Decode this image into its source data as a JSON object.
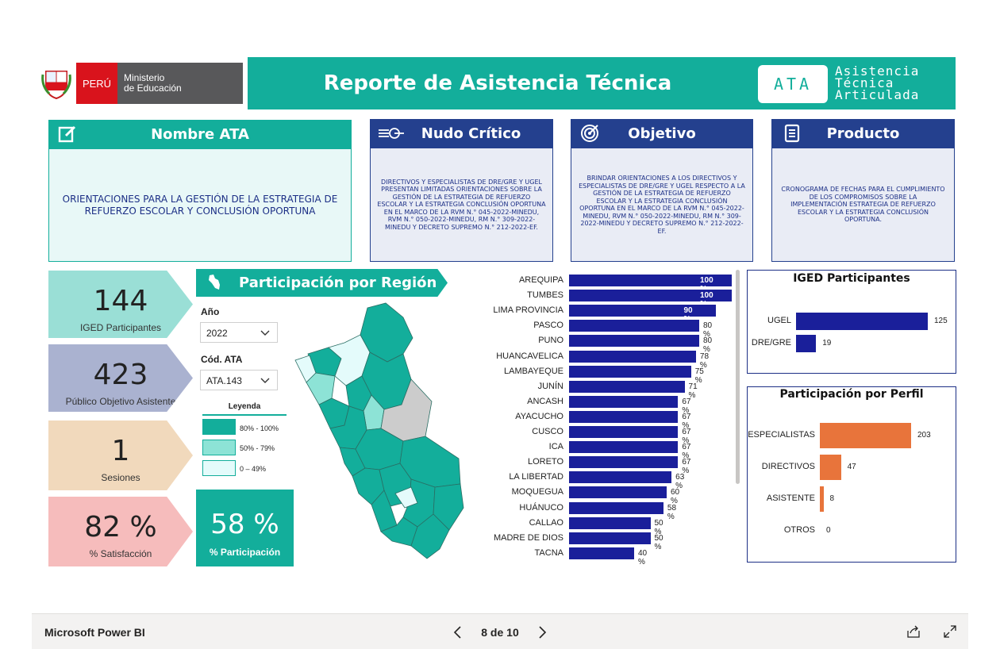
{
  "header": {
    "logo_country": "PERÚ",
    "logo_ministry_line1": "Ministerio",
    "logo_ministry_line2": "de Educación",
    "title": "Reporte de Asistencia Técnica",
    "badge": "ATA",
    "badge_sub": [
      "Asistencia",
      "Técnica",
      "Articulada"
    ]
  },
  "cards": {
    "nombre": {
      "title": "Nombre ATA",
      "icon": "edit-icon",
      "text": "ORIENTACIONES PARA LA GESTIÓN DE LA ESTRATEGIA DE REFUERZO ESCOLAR Y CONCLUSIÓN OPORTUNA"
    },
    "nudo": {
      "title": "Nudo Crítico",
      "icon": "knot-icon",
      "text": "DIRECTIVOS Y ESPECIALISTAS DE DRE/GRE Y UGEL PRESENTAN LIMITADAS ORIENTACIONES SOBRE LA GESTIÓN DE LA ESTRATEGIA DE REFUERZO ESCOLAR Y LA ESTRATEGIA CONCLUSIÓN OPORTUNA EN EL MARCO DE LA RVM N.° 045-2022-MINEDU, RVM N.° 050-2022-MINEDU, RM N.° 309-2022-MINEDU Y DECRETO SUPREMO N.° 212-2022-EF."
    },
    "objetivo": {
      "title": "Objetivo",
      "icon": "target-icon",
      "text": "BRINDAR ORIENTACIONES A LOS DIRECTIVOS Y ESPECIALISTAS DE DRE/GRE Y UGEL RESPECTO A LA GESTIÓN DE LA ESTRATEGIA DE REFUERZO ESCOLAR Y LA ESTRATEGIA CONCLUSIÓN OPORTUNA EN EL MARCO DE LA RVM N.° 045-2022-MINEDU, RVM N.° 050-2022-MINEDU, RM N.° 309-2022-MINEDU Y DECRETO SUPREMO N.° 212-2022-EF."
    },
    "producto": {
      "title": "Producto",
      "icon": "document-icon",
      "text": "CRONOGRAMA DE FECHAS PARA EL CUMPLIMIENTO DE LOS COMPROMISOS SOBRE LA IMPLEMENTACIÓN ESTRATEGIA DE REFUERZO ESCOLAR Y LA ESTRATEGIA CONCLUSIÓN OPORTUNA."
    }
  },
  "kpis": [
    {
      "value": "144",
      "label": "IGED Participantes",
      "color": "#9adfd6"
    },
    {
      "value": "423",
      "label": "Público Objetivo Asistente",
      "color": "#aab2d0"
    },
    {
      "value": "1",
      "label": "Sesiones",
      "color": "#f1d9bc"
    },
    {
      "value": "82 %",
      "label": "% Satisfacción",
      "color": "#f6bcbc"
    }
  ],
  "region": {
    "title": "Participación por Región",
    "year_label": "Año",
    "year_value": "2022",
    "code_label": "Cód. ATA",
    "code_value": "ATA.143",
    "legend_title": "Leyenda",
    "legend": [
      {
        "label": "80% - 100%",
        "color": "#13ae9b"
      },
      {
        "label": "50% - 79%",
        "color": "#8de3d6"
      },
      {
        "label": "0 – 49%",
        "color": "#e4fbfb"
      }
    ],
    "participation_value": "58 %",
    "participation_label": "% Participación"
  },
  "region_bars": {
    "labels": [
      "AREQUIPA",
      "TUMBES",
      "LIMA PROVINCIA",
      "PASCO",
      "PUNO",
      "HUANCAVELICA",
      "LAMBAYEQUE",
      "JUNÍN",
      "ANCASH",
      "AYACUCHO",
      "CUSCO",
      "ICA",
      "LORETO",
      "LA LIBERTAD",
      "MOQUEGUA",
      "HUÁNUCO",
      "CALLAO",
      "MADRE DE DIOS",
      "TACNA"
    ],
    "values": [
      100,
      100,
      90,
      80,
      80,
      78,
      75,
      71,
      67,
      67,
      67,
      67,
      67,
      63,
      60,
      58,
      50,
      50,
      40
    ],
    "value_labels": [
      "100 %",
      "100 %",
      "90 %",
      "80 %",
      "80 %",
      "78 %",
      "75 %",
      "71 %",
      "67 %",
      "67 %",
      "67 %",
      "67 %",
      "67 %",
      "63 %",
      "60 %",
      "58 %",
      "50 %",
      "50 %",
      "40 %"
    ],
    "color": "#1a1f9a"
  },
  "iged_chart": {
    "title": "IGED Participantes",
    "labels": [
      "UGEL",
      "DRE/GRE"
    ],
    "values": [
      125,
      19
    ],
    "value_labels": [
      "125",
      "19"
    ],
    "color": "#1a1f9a"
  },
  "perfil_chart": {
    "title": "Participación por Perfil",
    "labels": [
      "ESPECIALISTAS",
      "DIRECTIVOS",
      "ASISTENTE",
      "OTROS"
    ],
    "values": [
      203,
      47,
      8,
      0
    ],
    "value_labels": [
      "203",
      "47",
      "8",
      "0"
    ],
    "color": "#e8743b"
  },
  "footer": {
    "brand": "Microsoft Power BI",
    "page": "8 de 10"
  },
  "colors": {
    "teal": "#13ae9b",
    "navy": "#24408e",
    "light_teal_bg": "#e8f8f7",
    "light_blue_bg": "#e9ecf5"
  }
}
